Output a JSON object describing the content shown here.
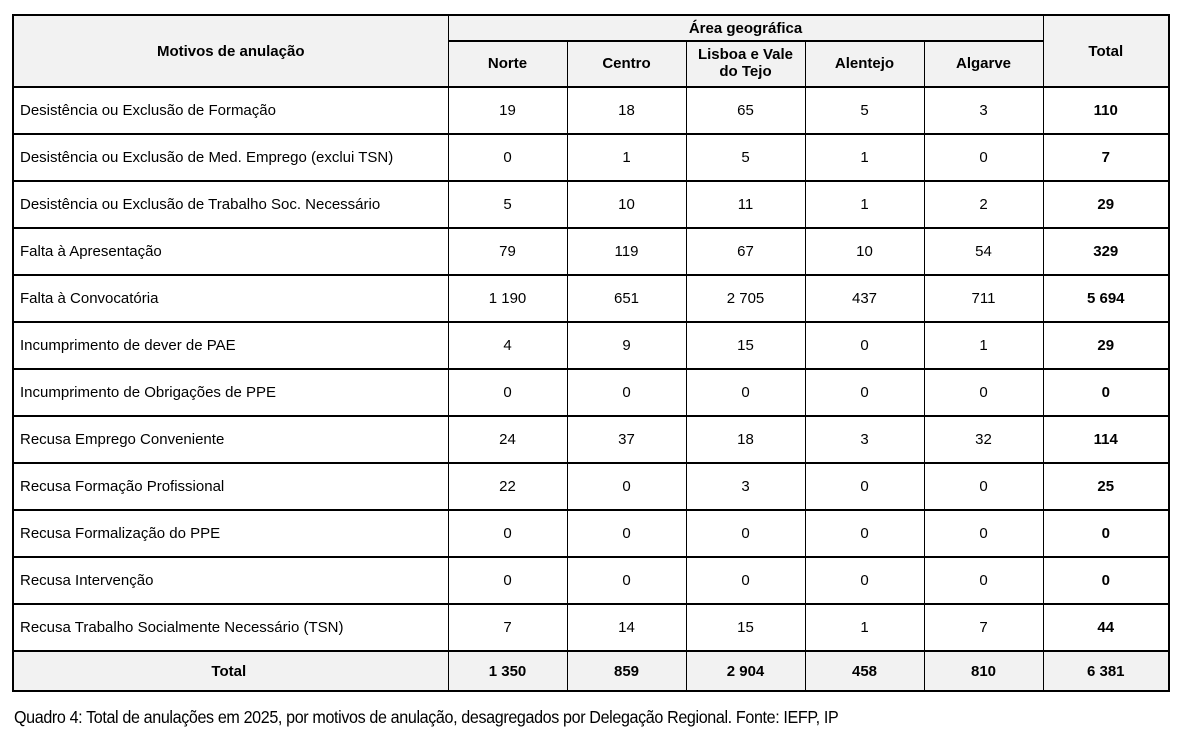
{
  "table": {
    "corner_header": "Motivos de anulação",
    "group_header": "Área geográfica",
    "total_header": "Total",
    "region_headers": [
      "Norte",
      "Centro",
      "Lisboa e Vale do Tejo",
      "Alentejo",
      "Algarve"
    ],
    "rows": [
      {
        "label": "Desistência ou Exclusão de Formação",
        "values": [
          "19",
          "18",
          "65",
          "5",
          "3"
        ],
        "total": "110"
      },
      {
        "label": "Desistência ou Exclusão de Med. Emprego (exclui TSN)",
        "values": [
          "0",
          "1",
          "5",
          "1",
          "0"
        ],
        "total": "7"
      },
      {
        "label": "Desistência ou Exclusão de Trabalho Soc. Necessário",
        "values": [
          "5",
          "10",
          "11",
          "1",
          "2"
        ],
        "total": "29"
      },
      {
        "label": "Falta à Apresentação",
        "values": [
          "79",
          "119",
          "67",
          "10",
          "54"
        ],
        "total": "329"
      },
      {
        "label": "Falta à Convocatória",
        "values": [
          "1 190",
          "651",
          "2 705",
          "437",
          "711"
        ],
        "total": "5 694"
      },
      {
        "label": "Incumprimento de dever de PAE",
        "values": [
          "4",
          "9",
          "15",
          "0",
          "1"
        ],
        "total": "29"
      },
      {
        "label": "Incumprimento de Obrigações de PPE",
        "values": [
          "0",
          "0",
          "0",
          "0",
          "0"
        ],
        "total": "0"
      },
      {
        "label": "Recusa Emprego Conveniente",
        "values": [
          "24",
          "37",
          "18",
          "3",
          "32"
        ],
        "total": "114"
      },
      {
        "label": "Recusa Formação Profissional",
        "values": [
          "22",
          "0",
          "3",
          "0",
          "0"
        ],
        "total": "25"
      },
      {
        "label": "Recusa Formalização do PPE",
        "values": [
          "0",
          "0",
          "0",
          "0",
          "0"
        ],
        "total": "0"
      },
      {
        "label": "Recusa Intervenção",
        "values": [
          "0",
          "0",
          "0",
          "0",
          "0"
        ],
        "total": "0"
      },
      {
        "label": "Recusa Trabalho Socialmente Necessário (TSN)",
        "values": [
          "7",
          "14",
          "15",
          "1",
          "7"
        ],
        "total": "44"
      }
    ],
    "total_row": {
      "label": "Total",
      "values": [
        "1 350",
        "859",
        "2 904",
        "458",
        "810"
      ],
      "total": "6 381"
    }
  },
  "caption": "Quadro 4: Total de anulações em 2025, por motivos de anulação, desagregados por Delegação Regional. Fonte: IEFP, IP",
  "colors": {
    "header_bg": "#f2f2f2",
    "border": "#000000",
    "text": "#000000"
  }
}
